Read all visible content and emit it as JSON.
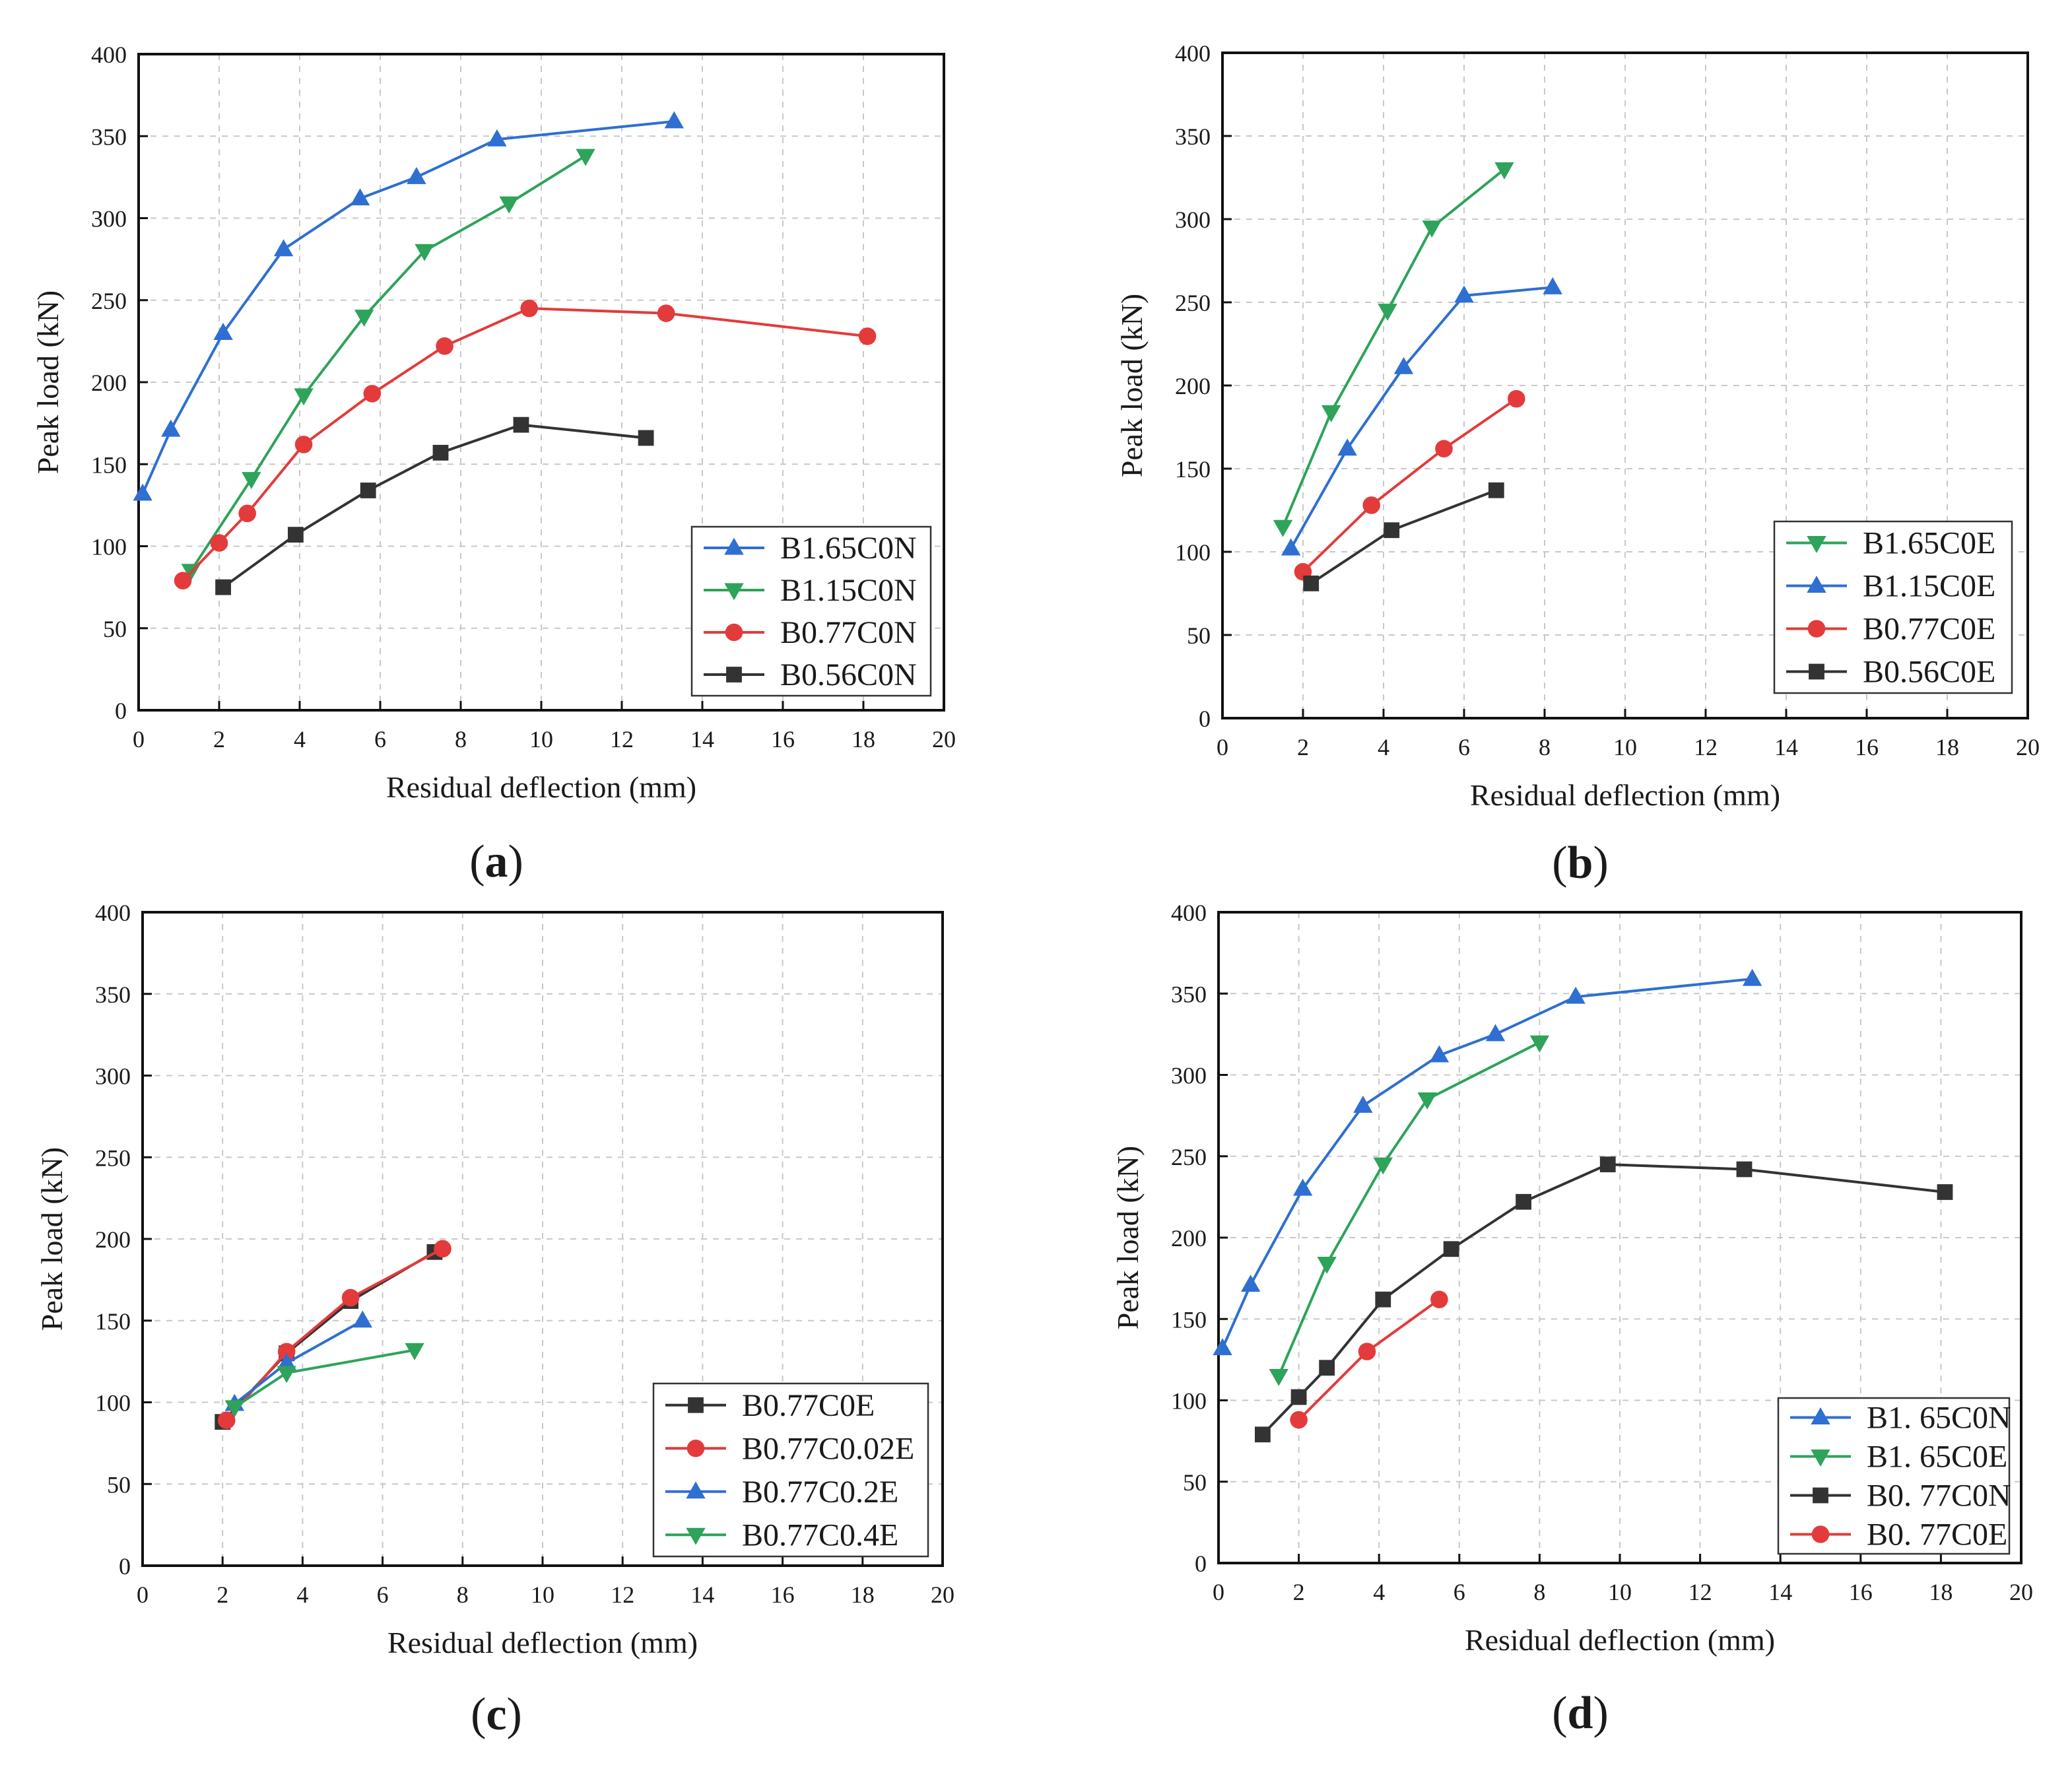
{
  "colors": {
    "blue": "#2e6fd1",
    "green": "#2ea35a",
    "red": "#e33b3b",
    "black": "#333333"
  },
  "chart_data": [
    {
      "type": "line",
      "panel_label": "(a)",
      "panel_letter": "a",
      "xlabel": "Residual deflection (mm)",
      "ylabel": "Peak load (kN)",
      "xlim": [
        0,
        20
      ],
      "ylim": [
        0,
        400
      ],
      "xticks": [
        "0",
        "2",
        "4",
        "6",
        "8",
        "10",
        "12",
        "14",
        "16",
        "18",
        "20"
      ],
      "yticks": [
        "0",
        "50",
        "100",
        "150",
        "200",
        "250",
        "300",
        "350",
        "400"
      ],
      "grid": true,
      "legend_position": "bottom-right",
      "series": [
        {
          "name": "B1.65C0N",
          "color": "blue",
          "marker": "triangle-up",
          "x": [
            0.1,
            0.8,
            2.1,
            3.6,
            5.5,
            6.9,
            8.9,
            13.3
          ],
          "y": [
            132,
            171,
            230,
            281,
            312,
            325,
            348,
            359
          ]
        },
        {
          "name": "B1.15C0N",
          "color": "green",
          "marker": "triangle-down",
          "x": [
            1.3,
            2.8,
            4.1,
            5.6,
            7.1,
            9.2,
            11.1
          ],
          "y": [
            85,
            141,
            192,
            240,
            280,
            309,
            338
          ]
        },
        {
          "name": "B0.77C0N",
          "color": "red",
          "marker": "circle",
          "x": [
            1.1,
            2.0,
            2.7,
            4.1,
            5.8,
            7.6,
            9.7,
            13.1,
            18.1
          ],
          "y": [
            79,
            102,
            120,
            162,
            193,
            222,
            245,
            242,
            228
          ]
        },
        {
          "name": "B0.56C0N",
          "color": "black",
          "marker": "square",
          "x": [
            2.1,
            3.9,
            5.7,
            7.5,
            9.5,
            12.6
          ],
          "y": [
            75,
            107,
            134,
            157,
            174,
            166
          ]
        }
      ]
    },
    {
      "type": "line",
      "panel_label": "(b)",
      "panel_letter": "b",
      "xlabel": "Residual deflection (mm)",
      "ylabel": "Peak load (kN)",
      "xlim": [
        0,
        20
      ],
      "ylim": [
        0,
        400
      ],
      "xticks": [
        "0",
        "2",
        "4",
        "6",
        "8",
        "10",
        "12",
        "14",
        "16",
        "18",
        "20"
      ],
      "yticks": [
        "0",
        "50",
        "100",
        "150",
        "200",
        "250",
        "300",
        "350",
        "400"
      ],
      "grid": true,
      "legend_position": "bottom-right",
      "series": [
        {
          "name": "B1.65C0E",
          "color": "green",
          "marker": "triangle-down",
          "x": [
            1.5,
            2.7,
            4.1,
            5.2,
            7.0
          ],
          "y": [
            115,
            184,
            245,
            295,
            330
          ]
        },
        {
          "name": "B1.15C0E",
          "color": "blue",
          "marker": "triangle-up",
          "x": [
            1.7,
            3.1,
            4.5,
            6.0,
            8.2
          ],
          "y": [
            102,
            162,
            211,
            254,
            259
          ]
        },
        {
          "name": "B0.77C0E",
          "color": "red",
          "marker": "circle",
          "x": [
            2.0,
            3.7,
            5.5,
            7.3
          ],
          "y": [
            88,
            128,
            162,
            192
          ]
        },
        {
          "name": "B0.56C0E",
          "color": "black",
          "marker": "square",
          "x": [
            2.2,
            4.2,
            6.8
          ],
          "y": [
            81,
            113,
            137
          ]
        }
      ]
    },
    {
      "type": "line",
      "panel_label": "(c)",
      "panel_letter": "c",
      "xlabel": "Residual deflection (mm)",
      "ylabel": "Peak load (kN)",
      "xlim": [
        0,
        20
      ],
      "ylim": [
        0,
        400
      ],
      "xticks": [
        "0",
        "2",
        "4",
        "6",
        "8",
        "10",
        "12",
        "14",
        "16",
        "18",
        "20"
      ],
      "yticks": [
        "0",
        "50",
        "100",
        "150",
        "200",
        "250",
        "300",
        "350",
        "400"
      ],
      "grid": true,
      "legend_position": "bottom-right",
      "series": [
        {
          "name": "B0.77C0E",
          "color": "black",
          "marker": "square",
          "x": [
            2.0,
            3.6,
            5.2,
            7.3
          ],
          "y": [
            88,
            130,
            162,
            192
          ]
        },
        {
          "name": "B0.77C0.02E",
          "color": "red",
          "marker": "circle",
          "x": [
            2.1,
            3.6,
            5.2,
            7.5
          ],
          "y": [
            89,
            131,
            164,
            194
          ]
        },
        {
          "name": "B0.77C0.2E",
          "color": "blue",
          "marker": "triangle-up",
          "x": [
            2.3,
            3.6,
            5.5
          ],
          "y": [
            99,
            124,
            150
          ]
        },
        {
          "name": "B0.77C0.4E",
          "color": "green",
          "marker": "triangle-down",
          "x": [
            2.3,
            3.6,
            6.8
          ],
          "y": [
            97,
            118,
            132
          ]
        }
      ]
    },
    {
      "type": "line",
      "panel_label": "(d)",
      "panel_letter": "d",
      "xlabel": "Residual deflection (mm)",
      "ylabel": "Peak load (kN)",
      "xlim": [
        0,
        20
      ],
      "ylim": [
        0,
        400
      ],
      "xticks": [
        "0",
        "2",
        "4",
        "6",
        "8",
        "10",
        "12",
        "14",
        "16",
        "18",
        "20"
      ],
      "yticks": [
        "0",
        "50",
        "100",
        "150",
        "200",
        "250",
        "300",
        "350",
        "400"
      ],
      "grid": true,
      "legend_position": "bottom-right",
      "series": [
        {
          "name": "B1. 65C0N",
          "color": "blue",
          "marker": "triangle-up",
          "x": [
            0.1,
            0.8,
            2.1,
            3.6,
            5.5,
            6.9,
            8.9,
            13.3
          ],
          "y": [
            132,
            171,
            230,
            281,
            312,
            325,
            348,
            359
          ]
        },
        {
          "name": "B1. 65C0E",
          "color": "green",
          "marker": "triangle-down",
          "x": [
            1.5,
            2.7,
            4.1,
            5.2,
            8.0
          ],
          "y": [
            115,
            184,
            245,
            285,
            320
          ]
        },
        {
          "name": "B0. 77C0N",
          "color": "black",
          "marker": "square",
          "x": [
            1.1,
            2.0,
            2.7,
            4.1,
            5.8,
            7.6,
            9.7,
            13.1,
            18.1
          ],
          "y": [
            79,
            102,
            120,
            162,
            193,
            222,
            245,
            242,
            228
          ]
        },
        {
          "name": "B0. 77C0E",
          "color": "red",
          "marker": "circle",
          "x": [
            2.0,
            3.7,
            5.5
          ],
          "y": [
            88,
            130,
            162
          ]
        }
      ]
    }
  ]
}
